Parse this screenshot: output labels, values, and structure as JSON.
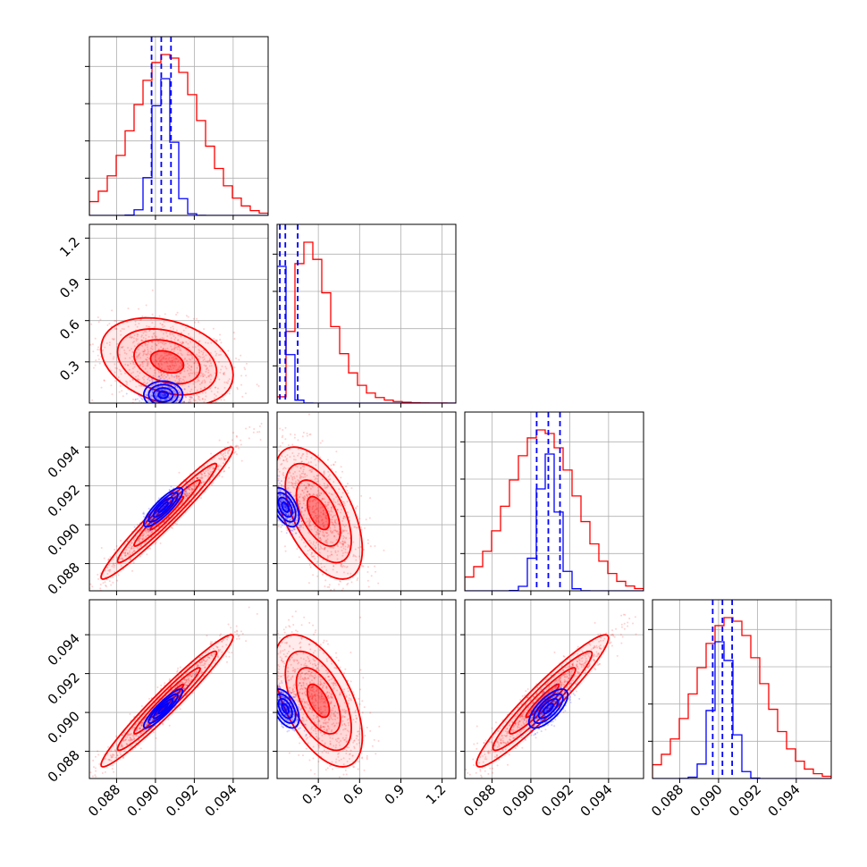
{
  "colors": {
    "posterior_a": "#ff0000",
    "posterior_b": "#0000ff",
    "grid": "#b0b0b0"
  },
  "chart_data": {
    "type": "corner",
    "grid": true,
    "parameters": [
      {
        "index": 0,
        "range": [
          0.0866,
          0.0958
        ],
        "ticks": [
          0.088,
          0.09,
          0.092,
          0.094
        ],
        "tick_labels": [
          "0.088",
          "0.090",
          "0.092",
          "0.094"
        ]
      },
      {
        "index": 1,
        "range": [
          0.0,
          1.3
        ],
        "ticks": [
          0.3,
          0.6,
          0.9,
          1.2
        ],
        "tick_labels": [
          "0.3",
          "0.6",
          "0.9",
          "1.2"
        ]
      },
      {
        "index": 2,
        "range": [
          0.0866,
          0.0958
        ],
        "ticks": [
          0.088,
          0.09,
          0.092,
          0.094
        ],
        "tick_labels": [
          "0.088",
          "0.090",
          "0.092",
          "0.094"
        ]
      },
      {
        "index": 3,
        "range": [
          0.0866,
          0.0958
        ],
        "ticks": [
          0.088,
          0.09,
          0.092,
          0.094
        ],
        "tick_labels": [
          "0.088",
          "0.090",
          "0.092",
          "0.094"
        ]
      }
    ],
    "series": [
      {
        "color": "red",
        "means": [
          0.0906,
          0.3,
          0.0906,
          0.0906
        ],
        "sds": [
          0.0017,
          0.16,
          0.0017,
          0.0017
        ],
        "correlations": {
          "1-0": -0.3,
          "2-0": 0.97,
          "2-1": -0.55,
          "3-0": 0.97,
          "3-1": -0.55,
          "3-2": 0.95
        }
      },
      {
        "color": "blue",
        "means": [
          0.0904,
          0.06,
          0.0909,
          0.0902
        ],
        "sds": [
          0.0005,
          0.05,
          0.0005,
          0.0005
        ],
        "correlations": {
          "1-0": 0.0,
          "2-0": 0.85,
          "2-1": -0.5,
          "3-0": 0.9,
          "3-1": -0.5,
          "3-2": 0.7
        }
      }
    ],
    "quantile_lines": [
      {
        "param": 0,
        "values": [
          0.0898,
          0.0903,
          0.0908
        ]
      },
      {
        "param": 1,
        "values": [
          0.02,
          0.06,
          0.15
        ]
      },
      {
        "param": 2,
        "values": [
          0.0903,
          0.0909,
          0.0915
        ]
      },
      {
        "param": 3,
        "values": [
          0.0897,
          0.0902,
          0.0907
        ]
      }
    ]
  }
}
